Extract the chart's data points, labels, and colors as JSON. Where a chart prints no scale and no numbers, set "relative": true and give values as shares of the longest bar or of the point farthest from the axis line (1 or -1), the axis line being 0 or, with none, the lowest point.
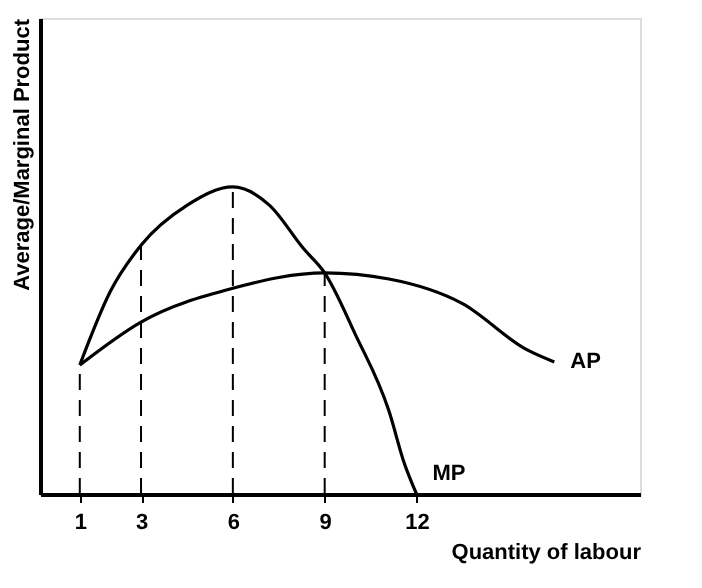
{
  "chart_data": {
    "type": "line",
    "relative": true,
    "xlabel": "Quantity of labour",
    "ylabel": "Average/Marginal Product",
    "xlim": [
      -0.3,
      19.3
    ],
    "xticks": [
      1,
      3,
      6,
      9,
      12
    ],
    "series": [
      {
        "name": "MP",
        "color": "#000000",
        "x": [
          1,
          2,
          3,
          4.5,
          6,
          7.2,
          8.3,
          9,
          10,
          11.1,
          11.6,
          12
        ],
        "values": [
          0.42,
          0.66,
          0.81,
          0.94,
          1,
          0.94,
          0.8,
          0.72,
          0.52,
          0.27,
          0.1,
          0
        ]
      },
      {
        "name": "AP",
        "color": "#000000",
        "x": [
          1,
          3,
          6,
          9,
          11.1,
          13.5,
          15.6,
          16.5
        ],
        "values": [
          0.42,
          0.56,
          0.67,
          0.72,
          0.7,
          0.62,
          0.47,
          0.43
        ]
      }
    ],
    "ref_lines": [
      {
        "axis": "x",
        "value": 1,
        "line_style": "dashed"
      },
      {
        "axis": "x",
        "value": 3,
        "line_style": "dashed"
      },
      {
        "axis": "x",
        "value": 6,
        "line_style": "dashed"
      },
      {
        "axis": "x",
        "value": 9,
        "line_style": "dashed"
      }
    ],
    "grid": false,
    "marker": "none",
    "line_style": "solid"
  }
}
